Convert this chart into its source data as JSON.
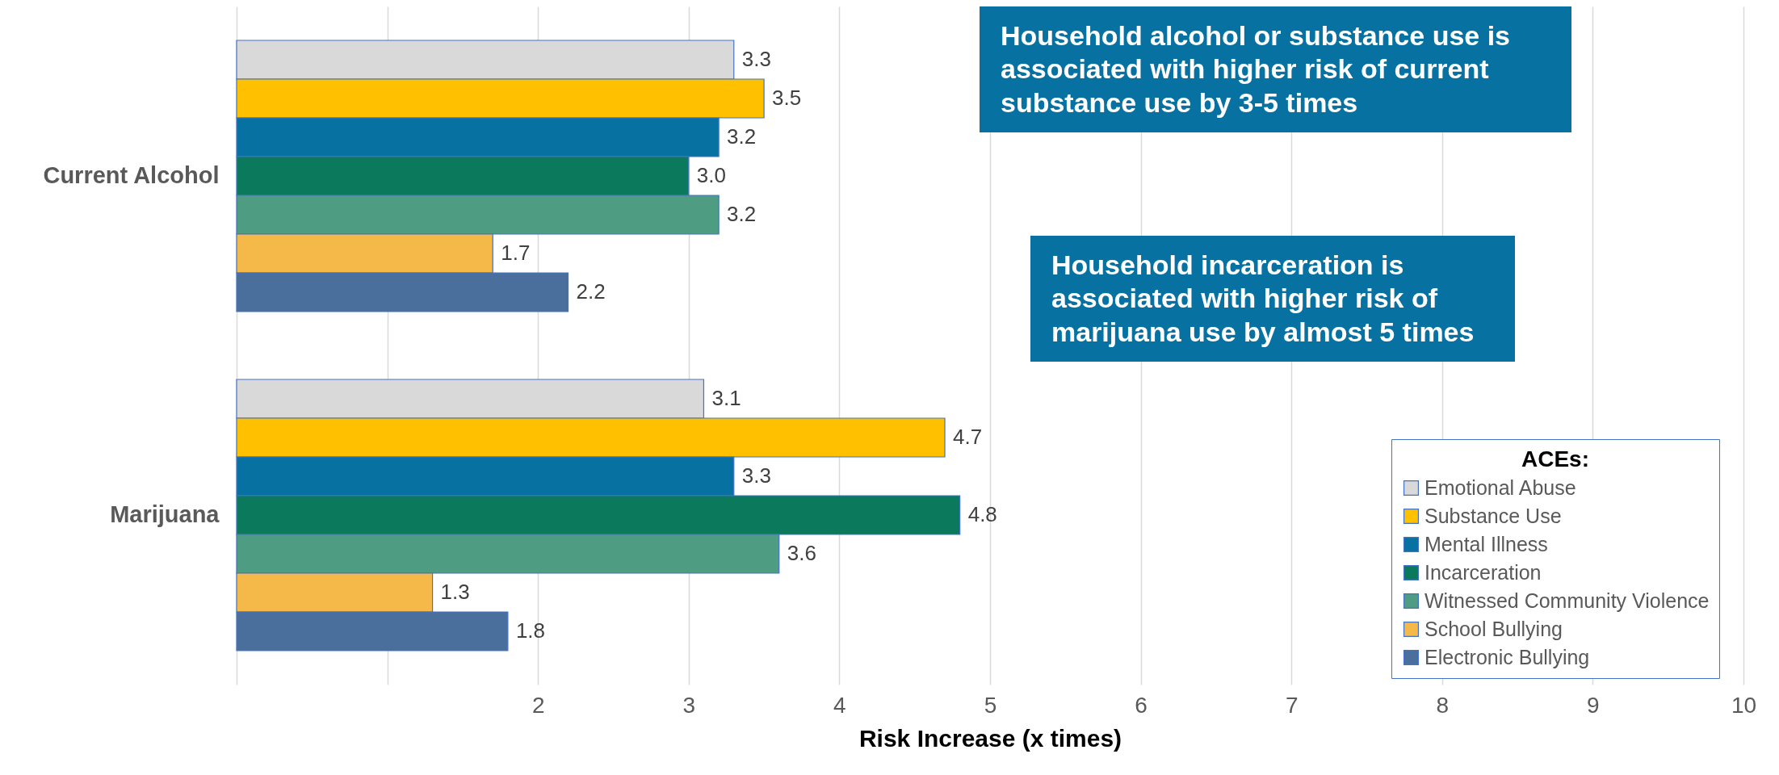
{
  "chart_data": {
    "type": "bar",
    "orientation": "horizontal",
    "categories": [
      "Current Alcohol",
      "Marijuana"
    ],
    "series": [
      {
        "name": "Emotional Abuse",
        "color": "#d9d9d9",
        "values": [
          3.3,
          3.1
        ],
        "value_labels": [
          "3.3",
          "3.1"
        ]
      },
      {
        "name": "Substance Use",
        "color": "#ffc000",
        "values": [
          3.5,
          4.7
        ],
        "value_labels": [
          "3.5",
          "4.7"
        ]
      },
      {
        "name": "Mental Illness",
        "color": "#0772a1",
        "values": [
          3.2,
          3.3
        ],
        "value_labels": [
          "3.2",
          "3.3"
        ]
      },
      {
        "name": "Incarceration",
        "color": "#0b7a5c",
        "values": [
          3.0,
          4.8
        ],
        "value_labels": [
          "3.0",
          "4.8"
        ]
      },
      {
        "name": "Witnessed Community Violence",
        "color": "#4e9c82",
        "values": [
          3.2,
          3.6
        ],
        "value_labels": [
          "3.2",
          "3.6"
        ]
      },
      {
        "name": "School Bullying",
        "color": "#f5b94a",
        "values": [
          1.7,
          1.3
        ],
        "value_labels": [
          "1.7",
          "1.3"
        ]
      },
      {
        "name": "Electronic Bullying",
        "color": "#4a6f9c",
        "values": [
          2.2,
          1.8
        ],
        "value_labels": [
          "2.2",
          "1.8"
        ]
      }
    ],
    "xlabel": "Risk Increase (x times)",
    "xlim": [
      0,
      10
    ],
    "xticks": [
      {
        "value": 0,
        "label": null
      },
      {
        "value": 1,
        "label": null
      },
      2,
      3,
      4,
      5,
      6,
      7,
      8,
      9,
      10
    ],
    "grid": "x",
    "legend": "bottom right",
    "legend_title": "ACEs:",
    "annotations": [
      "Household alcohol or substance use is associated with higher risk of current substance use by 3-5 times",
      "Household incarceration is associated with higher risk of marijuana use by almost 5 times"
    ]
  }
}
